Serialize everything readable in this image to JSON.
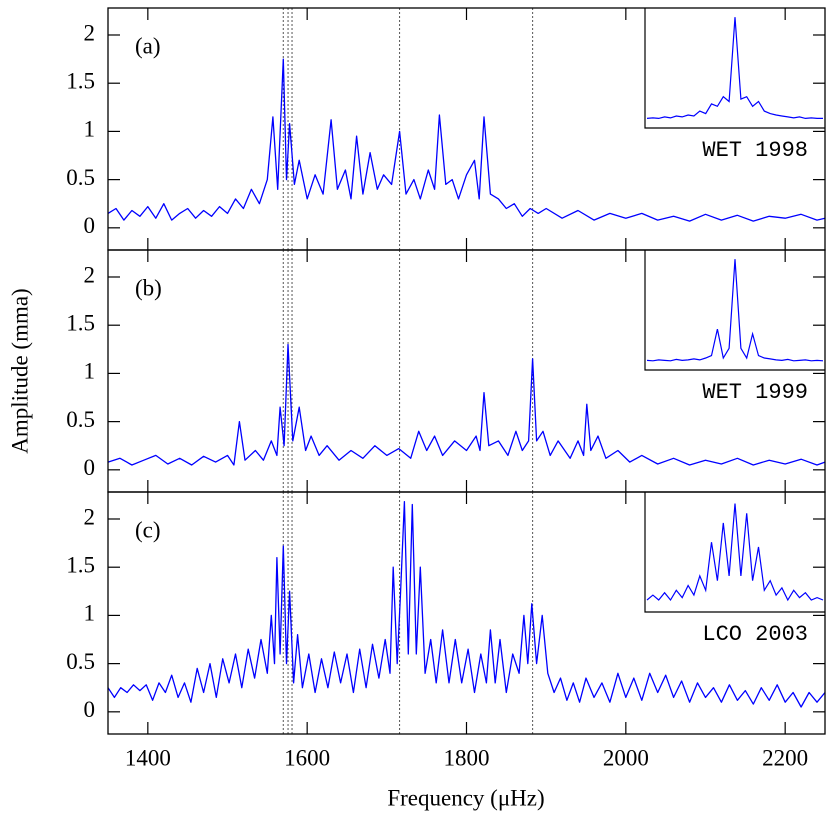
{
  "chart_data": [
    {
      "type": "line",
      "label": "(a)",
      "inset_label": "WET 1998",
      "ylabel": "Amplitude (mma)",
      "ylim": [
        -0.23,
        2.28
      ],
      "yticks": [
        0,
        0.5,
        1,
        1.5,
        2
      ],
      "x": [
        1350,
        1360,
        1370,
        1380,
        1390,
        1400,
        1410,
        1420,
        1430,
        1440,
        1450,
        1460,
        1470,
        1480,
        1490,
        1500,
        1510,
        1520,
        1530,
        1540,
        1550,
        1557,
        1563,
        1570,
        1574,
        1578,
        1584,
        1590,
        1600,
        1610,
        1620,
        1630,
        1638,
        1648,
        1655,
        1662,
        1670,
        1679,
        1688,
        1696,
        1706,
        1716,
        1724,
        1734,
        1742,
        1752,
        1760,
        1766,
        1774,
        1782,
        1790,
        1800,
        1810,
        1816,
        1822,
        1830,
        1840,
        1850,
        1860,
        1870,
        1880,
        1890,
        1900,
        1920,
        1940,
        1960,
        1980,
        2000,
        2020,
        2040,
        2060,
        2080,
        2100,
        2120,
        2140,
        2160,
        2180,
        2200,
        2220,
        2240,
        2250
      ],
      "series": [
        {
          "color": "#0000ff",
          "values": [
            0.15,
            0.2,
            0.08,
            0.18,
            0.12,
            0.22,
            0.1,
            0.25,
            0.08,
            0.15,
            0.2,
            0.1,
            0.18,
            0.12,
            0.22,
            0.15,
            0.3,
            0.2,
            0.4,
            0.25,
            0.5,
            1.15,
            0.4,
            1.75,
            0.5,
            1.08,
            0.45,
            0.7,
            0.3,
            0.55,
            0.35,
            1.12,
            0.4,
            0.6,
            0.3,
            0.95,
            0.35,
            0.78,
            0.4,
            0.55,
            0.45,
            1.0,
            0.35,
            0.5,
            0.3,
            0.6,
            0.4,
            1.17,
            0.45,
            0.5,
            0.3,
            0.55,
            0.7,
            0.3,
            1.15,
            0.35,
            0.3,
            0.2,
            0.25,
            0.12,
            0.2,
            0.15,
            0.2,
            0.1,
            0.18,
            0.08,
            0.15,
            0.1,
            0.15,
            0.08,
            0.12,
            0.07,
            0.14,
            0.08,
            0.13,
            0.07,
            0.12,
            0.1,
            0.14,
            0.08,
            0.1
          ]
        }
      ],
      "inset": {
        "ylim": [
          -0.15,
          2.3
        ],
        "values": [
          0.05,
          0.06,
          0.05,
          0.08,
          0.06,
          0.1,
          0.08,
          0.12,
          0.1,
          0.2,
          0.15,
          0.35,
          0.3,
          0.5,
          0.4,
          2.15,
          0.45,
          0.5,
          0.3,
          0.4,
          0.2,
          0.15,
          0.12,
          0.1,
          0.08,
          0.06,
          0.08,
          0.05,
          0.06,
          0.05,
          0.05
        ]
      }
    },
    {
      "type": "line",
      "label": "(b)",
      "inset_label": "WET 1999",
      "ylim": [
        -0.23,
        2.28
      ],
      "yticks": [
        0,
        0.5,
        1,
        1.5,
        2
      ],
      "x": [
        1350,
        1365,
        1380,
        1395,
        1410,
        1425,
        1440,
        1455,
        1470,
        1485,
        1500,
        1508,
        1515,
        1522,
        1535,
        1545,
        1555,
        1562,
        1566,
        1571,
        1576,
        1582,
        1590,
        1598,
        1605,
        1615,
        1625,
        1640,
        1655,
        1670,
        1685,
        1700,
        1715,
        1730,
        1740,
        1750,
        1760,
        1770,
        1785,
        1800,
        1812,
        1817,
        1822,
        1828,
        1840,
        1852,
        1862,
        1870,
        1878,
        1883,
        1888,
        1896,
        1905,
        1915,
        1930,
        1940,
        1947,
        1951,
        1956,
        1965,
        1975,
        1990,
        2005,
        2020,
        2040,
        2060,
        2080,
        2100,
        2120,
        2140,
        2160,
        2180,
        2200,
        2220,
        2240,
        2250
      ],
      "series": [
        {
          "color": "#0000ff",
          "values": [
            0.08,
            0.12,
            0.05,
            0.1,
            0.15,
            0.06,
            0.12,
            0.05,
            0.14,
            0.08,
            0.15,
            0.05,
            0.5,
            0.1,
            0.2,
            0.1,
            0.3,
            0.15,
            0.65,
            0.25,
            1.3,
            0.3,
            0.65,
            0.2,
            0.35,
            0.15,
            0.25,
            0.1,
            0.2,
            0.12,
            0.25,
            0.15,
            0.22,
            0.12,
            0.4,
            0.2,
            0.35,
            0.15,
            0.3,
            0.2,
            0.35,
            0.2,
            0.8,
            0.25,
            0.3,
            0.15,
            0.4,
            0.2,
            0.3,
            1.15,
            0.3,
            0.4,
            0.15,
            0.3,
            0.12,
            0.3,
            0.15,
            0.68,
            0.2,
            0.35,
            0.12,
            0.2,
            0.08,
            0.15,
            0.06,
            0.12,
            0.05,
            0.1,
            0.06,
            0.12,
            0.05,
            0.1,
            0.06,
            0.11,
            0.05,
            0.08
          ]
        }
      ],
      "inset": {
        "ylim": [
          -0.15,
          2.3
        ],
        "values": [
          0.05,
          0.04,
          0.06,
          0.05,
          0.04,
          0.07,
          0.05,
          0.06,
          0.08,
          0.06,
          0.1,
          0.15,
          0.7,
          0.1,
          0.3,
          2.15,
          0.3,
          0.1,
          0.6,
          0.15,
          0.1,
          0.08,
          0.06,
          0.05,
          0.07,
          0.04,
          0.05,
          0.06,
          0.04,
          0.05,
          0.04
        ]
      }
    },
    {
      "type": "line",
      "label": "(c)",
      "inset_label": "LCO 2003",
      "xlabel": "Frequency (μHz)",
      "xlim": [
        1350,
        2250
      ],
      "xticks": [
        1400,
        1600,
        1800,
        2000,
        2200
      ],
      "ylim": [
        -0.23,
        2.28
      ],
      "yticks": [
        0,
        0.5,
        1,
        1.5,
        2
      ],
      "x": [
        1350,
        1358,
        1366,
        1374,
        1382,
        1390,
        1398,
        1406,
        1414,
        1422,
        1430,
        1438,
        1446,
        1454,
        1462,
        1470,
        1478,
        1486,
        1494,
        1502,
        1510,
        1518,
        1526,
        1534,
        1542,
        1550,
        1555,
        1559,
        1562,
        1566,
        1570,
        1574,
        1578,
        1583,
        1588,
        1594,
        1602,
        1610,
        1618,
        1626,
        1634,
        1642,
        1650,
        1658,
        1666,
        1674,
        1682,
        1690,
        1698,
        1704,
        1708,
        1713,
        1717,
        1722,
        1727,
        1732,
        1737,
        1742,
        1748,
        1755,
        1762,
        1770,
        1778,
        1786,
        1794,
        1802,
        1810,
        1818,
        1825,
        1830,
        1836,
        1842,
        1850,
        1858,
        1866,
        1872,
        1877,
        1882,
        1888,
        1895,
        1902,
        1910,
        1918,
        1926,
        1934,
        1942,
        1950,
        1960,
        1970,
        1980,
        1990,
        2000,
        2010,
        2020,
        2030,
        2040,
        2050,
        2060,
        2070,
        2080,
        2090,
        2100,
        2110,
        2120,
        2130,
        2140,
        2150,
        2160,
        2170,
        2180,
        2190,
        2200,
        2210,
        2220,
        2230,
        2240,
        2250
      ],
      "series": [
        {
          "color": "#0000ff",
          "values": [
            0.25,
            0.15,
            0.25,
            0.2,
            0.28,
            0.22,
            0.28,
            0.12,
            0.3,
            0.2,
            0.38,
            0.15,
            0.3,
            0.1,
            0.45,
            0.2,
            0.5,
            0.15,
            0.55,
            0.3,
            0.6,
            0.25,
            0.65,
            0.35,
            0.75,
            0.4,
            1.0,
            0.5,
            1.6,
            0.6,
            1.72,
            0.5,
            1.25,
            0.3,
            0.8,
            0.25,
            0.6,
            0.2,
            0.55,
            0.25,
            0.62,
            0.3,
            0.6,
            0.2,
            0.65,
            0.25,
            0.7,
            0.35,
            0.75,
            0.4,
            1.5,
            0.5,
            1.2,
            2.18,
            0.6,
            2.15,
            0.6,
            1.5,
            0.4,
            0.75,
            0.3,
            0.85,
            0.3,
            0.75,
            0.3,
            0.65,
            0.2,
            0.6,
            0.3,
            0.85,
            0.3,
            0.75,
            0.2,
            0.6,
            0.4,
            1.0,
            0.5,
            1.12,
            0.5,
            1.0,
            0.4,
            0.2,
            0.35,
            0.12,
            0.3,
            0.1,
            0.35,
            0.15,
            0.3,
            0.1,
            0.4,
            0.15,
            0.35,
            0.12,
            0.4,
            0.2,
            0.38,
            0.15,
            0.32,
            0.1,
            0.3,
            0.15,
            0.25,
            0.1,
            0.28,
            0.12,
            0.22,
            0.08,
            0.25,
            0.12,
            0.28,
            0.1,
            0.2,
            0.05,
            0.2,
            0.1,
            0.2
          ]
        }
      ],
      "inset": {
        "ylim": [
          -0.15,
          2.3
        ],
        "values": [
          0.1,
          0.2,
          0.1,
          0.25,
          0.1,
          0.3,
          0.15,
          0.4,
          0.2,
          0.6,
          0.3,
          1.3,
          0.5,
          1.7,
          0.6,
          2.1,
          0.6,
          1.9,
          0.5,
          1.2,
          0.3,
          0.5,
          0.2,
          0.35,
          0.1,
          0.3,
          0.15,
          0.25,
          0.1,
          0.15,
          0.1
        ]
      }
    }
  ],
  "reference_lines": [
    1570,
    1576,
    1581,
    1716,
    1883
  ]
}
